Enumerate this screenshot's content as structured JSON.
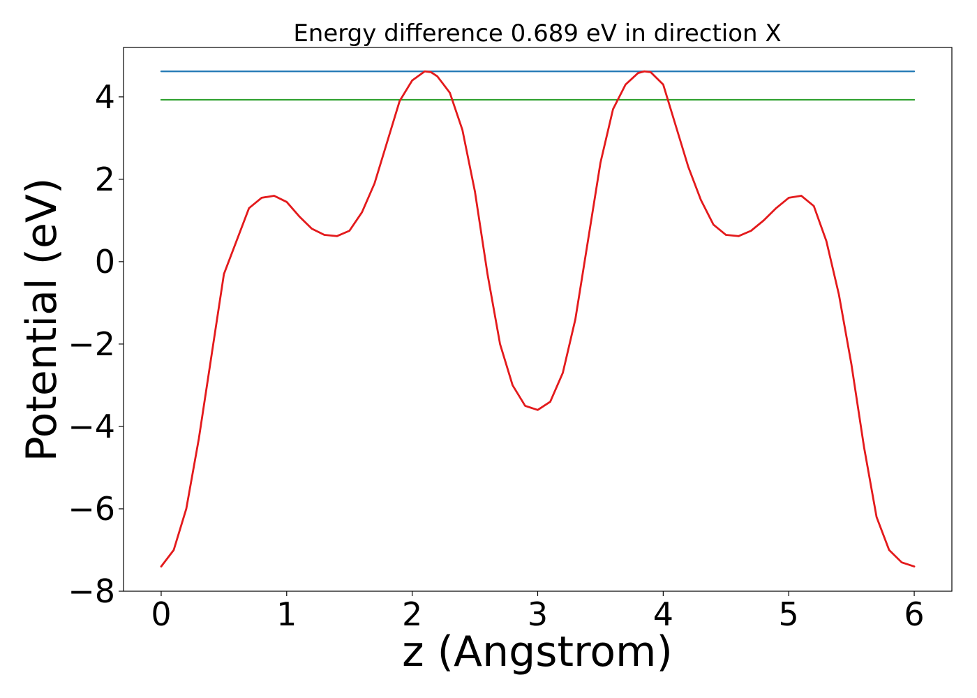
{
  "chart_data": {
    "type": "line",
    "title": "Energy difference 0.689 eV in direction X",
    "xlabel": "z (Angstrom)",
    "ylabel": "Potential (eV)",
    "xlim": [
      -0.3,
      6.3
    ],
    "ylim": [
      -8.0,
      5.2
    ],
    "xticks": [
      0,
      1,
      2,
      3,
      4,
      5,
      6
    ],
    "xtick_labels": [
      "0",
      "1",
      "2",
      "3",
      "4",
      "5",
      "6"
    ],
    "yticks": [
      -8,
      -6,
      -4,
      -2,
      0,
      2,
      4
    ],
    "ytick_labels": [
      "−8",
      "−6",
      "−4",
      "−2",
      "0",
      "2",
      "4"
    ],
    "grid": false,
    "series": [
      {
        "color": "#1f77b4",
        "x": [
          0,
          6
        ],
        "y": [
          4.62,
          4.62
        ]
      },
      {
        "color": "#2ca02c",
        "x": [
          0,
          6
        ],
        "y": [
          3.93,
          3.93
        ]
      },
      {
        "color": "#e31a1c",
        "x": [
          0,
          0.1,
          0.2,
          0.3,
          0.4,
          0.5,
          0.6,
          0.7,
          0.8,
          0.9,
          1.0,
          1.1,
          1.2,
          1.3,
          1.4,
          1.5,
          1.6,
          1.7,
          1.8,
          1.9,
          2.0,
          2.1,
          2.15,
          2.2,
          2.3,
          2.4,
          2.5,
          2.6,
          2.7,
          2.8,
          2.9,
          3.0,
          3.1,
          3.2,
          3.3,
          3.4,
          3.5,
          3.6,
          3.7,
          3.8,
          3.85,
          3.9,
          4.0,
          4.1,
          4.2,
          4.3,
          4.4,
          4.5,
          4.6,
          4.7,
          4.8,
          4.9,
          5.0,
          5.1,
          5.2,
          5.3,
          5.4,
          5.5,
          5.6,
          5.7,
          5.8,
          5.9,
          6.0
        ],
        "y": [
          -7.4,
          -7.0,
          -6.0,
          -4.3,
          -2.3,
          -0.3,
          0.5,
          1.3,
          1.55,
          1.6,
          1.45,
          1.1,
          0.8,
          0.65,
          0.62,
          0.75,
          1.2,
          1.9,
          2.9,
          3.9,
          4.4,
          4.62,
          4.6,
          4.5,
          4.1,
          3.2,
          1.7,
          -0.3,
          -2.0,
          -3.0,
          -3.5,
          -3.6,
          -3.4,
          -2.7,
          -1.4,
          0.5,
          2.4,
          3.7,
          4.3,
          4.58,
          4.62,
          4.6,
          4.3,
          3.3,
          2.3,
          1.5,
          0.9,
          0.65,
          0.62,
          0.75,
          1.0,
          1.3,
          1.55,
          1.6,
          1.35,
          0.5,
          -0.8,
          -2.5,
          -4.5,
          -6.2,
          -7.0,
          -7.3,
          -7.4
        ]
      }
    ]
  }
}
